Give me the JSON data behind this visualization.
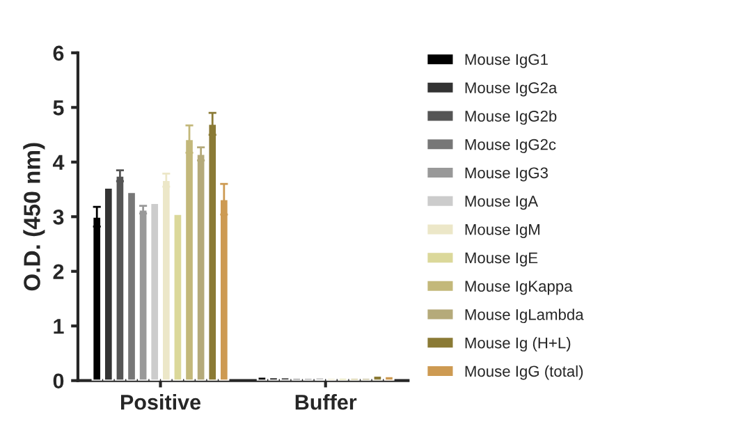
{
  "chart_data": {
    "type": "bar",
    "ylabel": "O.D. (450 nm)",
    "categories": [
      "Positive",
      "Buffer"
    ],
    "ylim": [
      0,
      6
    ],
    "yticks": [
      0,
      1,
      2,
      3,
      4,
      5,
      6
    ],
    "grid": false,
    "legend": "right",
    "series": [
      {
        "name": "Mouse IgG1",
        "color": "#000000",
        "values": [
          3.0,
          0.07
        ],
        "errors": [
          0.18,
          null
        ]
      },
      {
        "name": "Mouse IgG2a",
        "color": "#333333",
        "values": [
          3.53,
          0.06
        ]
      },
      {
        "name": "Mouse IgG2b",
        "color": "#555555",
        "values": [
          3.75,
          0.06
        ],
        "errors": [
          0.1,
          null
        ]
      },
      {
        "name": "Mouse IgG2c",
        "color": "#777777",
        "values": [
          3.45,
          0.05
        ]
      },
      {
        "name": "Mouse IgG3",
        "color": "#999999",
        "values": [
          3.13,
          0.05
        ],
        "errors": [
          0.07,
          null
        ]
      },
      {
        "name": "Mouse IgA",
        "color": "#cccccc",
        "values": [
          3.25,
          0.06
        ]
      },
      {
        "name": "Mouse IgM",
        "color": "#ece7c8",
        "values": [
          3.67,
          0.05
        ],
        "errors": [
          0.12,
          null
        ]
      },
      {
        "name": "Mouse IgE",
        "color": "#dbd89a",
        "values": [
          3.05,
          0.05
        ]
      },
      {
        "name": "Mouse IgKappa",
        "color": "#c3b87a",
        "values": [
          4.42,
          0.05
        ],
        "errors": [
          0.25,
          null
        ]
      },
      {
        "name": "Mouse IgLambda",
        "color": "#b5aa7a",
        "values": [
          4.15,
          0.05
        ],
        "errors": [
          0.12,
          null
        ]
      },
      {
        "name": "Mouse Ig (H+L)",
        "color": "#8a7a35",
        "values": [
          4.7,
          0.09
        ],
        "errors": [
          0.2,
          null
        ]
      },
      {
        "name": "Mouse IgG (total)",
        "color": "#cd9a52",
        "values": [
          3.32,
          0.08
        ],
        "errors": [
          0.28,
          null
        ]
      }
    ]
  }
}
